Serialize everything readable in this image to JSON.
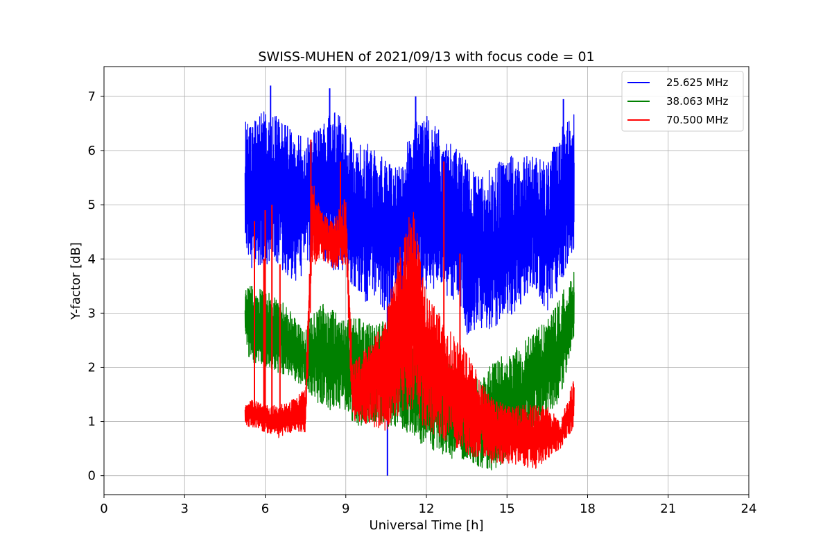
{
  "chart_data": {
    "type": "line",
    "title": "SWISS-MUHEN of 2021/09/13 with focus code = 01",
    "xlabel": "Universal Time [h]",
    "ylabel": "Y-factor [dB]",
    "xlim": [
      0,
      24
    ],
    "ylim": [
      -0.35,
      7.55
    ],
    "xticks": [
      0,
      3,
      6,
      9,
      12,
      15,
      18,
      21,
      24
    ],
    "xtick_labels": [
      "0",
      "3",
      "6",
      "9",
      "12",
      "15",
      "18",
      "21",
      "24"
    ],
    "yticks": [
      0,
      1,
      2,
      3,
      4,
      5,
      6,
      7
    ],
    "ytick_labels": [
      "0",
      "1",
      "2",
      "3",
      "4",
      "5",
      "6",
      "7"
    ],
    "grid": true,
    "legend_position": "top-right",
    "series": [
      {
        "name": "25.625 MHz",
        "color": "#0000ff",
        "data_range_h": [
          5.25,
          17.5
        ],
        "envelope": {
          "x": [
            5.25,
            5.5,
            6.0,
            6.5,
            7.0,
            7.5,
            7.75,
            8.0,
            8.5,
            9.0,
            9.25,
            9.5,
            10.0,
            10.5,
            11.0,
            11.5,
            12.0,
            12.5,
            13.0,
            13.5,
            14.0,
            14.5,
            15.0,
            15.5,
            16.0,
            16.5,
            17.0,
            17.5
          ],
          "low": [
            4.3,
            3.8,
            3.9,
            3.9,
            3.5,
            3.7,
            4.0,
            4.1,
            3.8,
            3.7,
            3.4,
            3.2,
            3.2,
            3.0,
            3.4,
            3.5,
            3.4,
            3.4,
            3.2,
            2.6,
            2.7,
            2.6,
            2.9,
            3.1,
            3.5,
            3.0,
            3.5,
            4.2
          ],
          "high": [
            6.6,
            6.5,
            6.8,
            6.6,
            6.4,
            6.2,
            6.3,
            6.5,
            6.8,
            6.5,
            6.2,
            6.1,
            6.2,
            5.9,
            5.7,
            6.5,
            6.7,
            6.4,
            6.1,
            5.8,
            5.5,
            5.7,
            5.9,
            5.9,
            5.9,
            5.8,
            6.4,
            6.7
          ]
        },
        "spikes": [
          {
            "x": 6.2,
            "y": 7.2
          },
          {
            "x": 8.4,
            "y": 7.15
          },
          {
            "x": 11.6,
            "y": 7.0
          },
          {
            "x": 17.1,
            "y": 6.95
          },
          {
            "x": 10.55,
            "y": 0.0
          }
        ]
      },
      {
        "name": "38.063 MHz",
        "color": "#008000",
        "data_range_h": [
          5.25,
          17.5
        ],
        "envelope": {
          "x": [
            5.25,
            5.5,
            6.0,
            6.5,
            7.0,
            7.5,
            7.75,
            8.0,
            8.5,
            9.0,
            9.25,
            9.5,
            10.0,
            10.5,
            11.0,
            11.5,
            12.0,
            12.5,
            13.0,
            13.5,
            14.0,
            14.5,
            15.0,
            15.5,
            16.0,
            16.5,
            17.0,
            17.5
          ],
          "low": [
            2.2,
            2.1,
            2.0,
            1.9,
            1.8,
            1.6,
            1.4,
            1.3,
            1.2,
            1.2,
            1.0,
            0.9,
            1.0,
            0.9,
            0.9,
            0.7,
            0.5,
            0.4,
            0.3,
            0.3,
            0.1,
            0.1,
            0.3,
            0.5,
            0.8,
            1.1,
            1.4,
            2.6
          ],
          "high": [
            3.5,
            3.5,
            3.4,
            3.3,
            3.0,
            2.7,
            3.0,
            3.2,
            3.1,
            2.9,
            2.9,
            2.9,
            2.8,
            2.9,
            3.0,
            2.4,
            2.3,
            2.3,
            2.0,
            1.8,
            1.8,
            2.1,
            2.3,
            2.4,
            2.7,
            2.9,
            3.3,
            3.9
          ]
        },
        "spikes": []
      },
      {
        "name": "70.500 MHz",
        "color": "#ff0000",
        "data_range_h": [
          5.25,
          17.5
        ],
        "envelope": {
          "x": [
            5.25,
            5.5,
            6.0,
            6.5,
            7.0,
            7.5,
            7.75,
            8.0,
            8.5,
            9.0,
            9.25,
            9.5,
            10.0,
            10.5,
            11.0,
            11.5,
            12.0,
            12.5,
            13.0,
            13.5,
            14.0,
            14.5,
            15.0,
            15.5,
            16.0,
            16.5,
            17.0,
            17.5
          ],
          "low": [
            0.9,
            0.9,
            0.8,
            0.7,
            0.8,
            0.8,
            3.8,
            4.0,
            3.8,
            3.9,
            0.9,
            1.0,
            0.9,
            0.8,
            1.0,
            1.2,
            0.8,
            0.7,
            0.5,
            0.4,
            0.3,
            0.2,
            0.2,
            0.2,
            0.1,
            0.3,
            0.5,
            0.9
          ],
          "high": [
            1.3,
            1.4,
            1.3,
            1.3,
            1.4,
            1.6,
            5.5,
            5.0,
            4.7,
            5.2,
            2.1,
            2.2,
            2.5,
            3.0,
            4.2,
            5.0,
            3.4,
            3.0,
            2.6,
            2.3,
            1.8,
            1.4,
            1.3,
            1.3,
            1.3,
            1.3,
            1.0,
            1.8
          ]
        },
        "spikes": [
          {
            "x": 5.6,
            "y": 4.7
          },
          {
            "x": 5.95,
            "y": 4.0
          },
          {
            "x": 6.0,
            "y": 4.9
          },
          {
            "x": 6.25,
            "y": 5.0
          },
          {
            "x": 6.55,
            "y": 3.9
          },
          {
            "x": 7.7,
            "y": 6.2
          },
          {
            "x": 8.8,
            "y": 5.8
          },
          {
            "x": 12.65,
            "y": 5.8
          },
          {
            "x": 13.25,
            "y": 4.1
          }
        ]
      }
    ]
  }
}
